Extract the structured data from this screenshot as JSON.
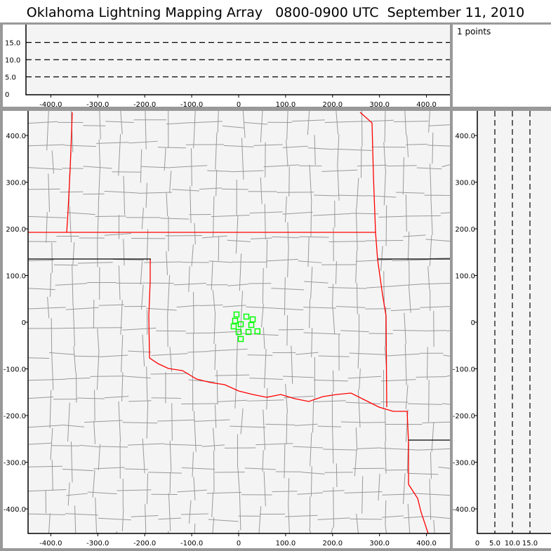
{
  "title": "Oklahoma Lightning Mapping Array   0800-0900 UTC  September 11, 2010",
  "points_label": "1 points",
  "colors": {
    "background": "#f4f4f4",
    "frame": "#999999",
    "state_border": "#ff0000",
    "county": "#999999",
    "points": "#00ff00"
  },
  "plan_view": {
    "x_ticks": [
      "-400.0",
      "-300.0",
      "-200.0",
      "-100.0",
      "0",
      "100.0",
      "200.0",
      "300.0",
      "400.0"
    ],
    "y_ticks": [
      "400.0",
      "300.0",
      "200.0",
      "100.0",
      "0",
      "-100.0",
      "-200.0",
      "-300.0",
      "-400.0"
    ],
    "xlim": [
      -450,
      450
    ],
    "ylim": [
      -450,
      450
    ]
  },
  "altitude_view": {
    "y_ticks": [
      "15.0",
      "10.0",
      "5.0",
      "0"
    ],
    "x_ticks": [
      "-400.0",
      "-300.0",
      "-200.0",
      "-100.0",
      "0",
      "100.0",
      "200.0",
      "300.0",
      "400.0"
    ],
    "ylim": [
      0,
      20
    ]
  },
  "side_view": {
    "x_ticks": [
      "0",
      "5.0",
      "10.0",
      "15.0"
    ],
    "y_ticks": [
      "400.0",
      "300.0",
      "200.0",
      "100.0",
      "0",
      "-100.0",
      "-200.0",
      "-300.0",
      "-400.0"
    ]
  },
  "sources": [
    [
      -4.5,
      16.5
    ],
    [
      -7.5,
      3
    ],
    [
      16.4,
      12
    ],
    [
      30,
      6
    ],
    [
      -10.5,
      -9
    ],
    [
      4.5,
      -4.5
    ],
    [
      27,
      -6
    ],
    [
      0,
      -21
    ],
    [
      21,
      -21
    ],
    [
      40,
      -19.5
    ],
    [
      4.5,
      -36
    ]
  ]
}
